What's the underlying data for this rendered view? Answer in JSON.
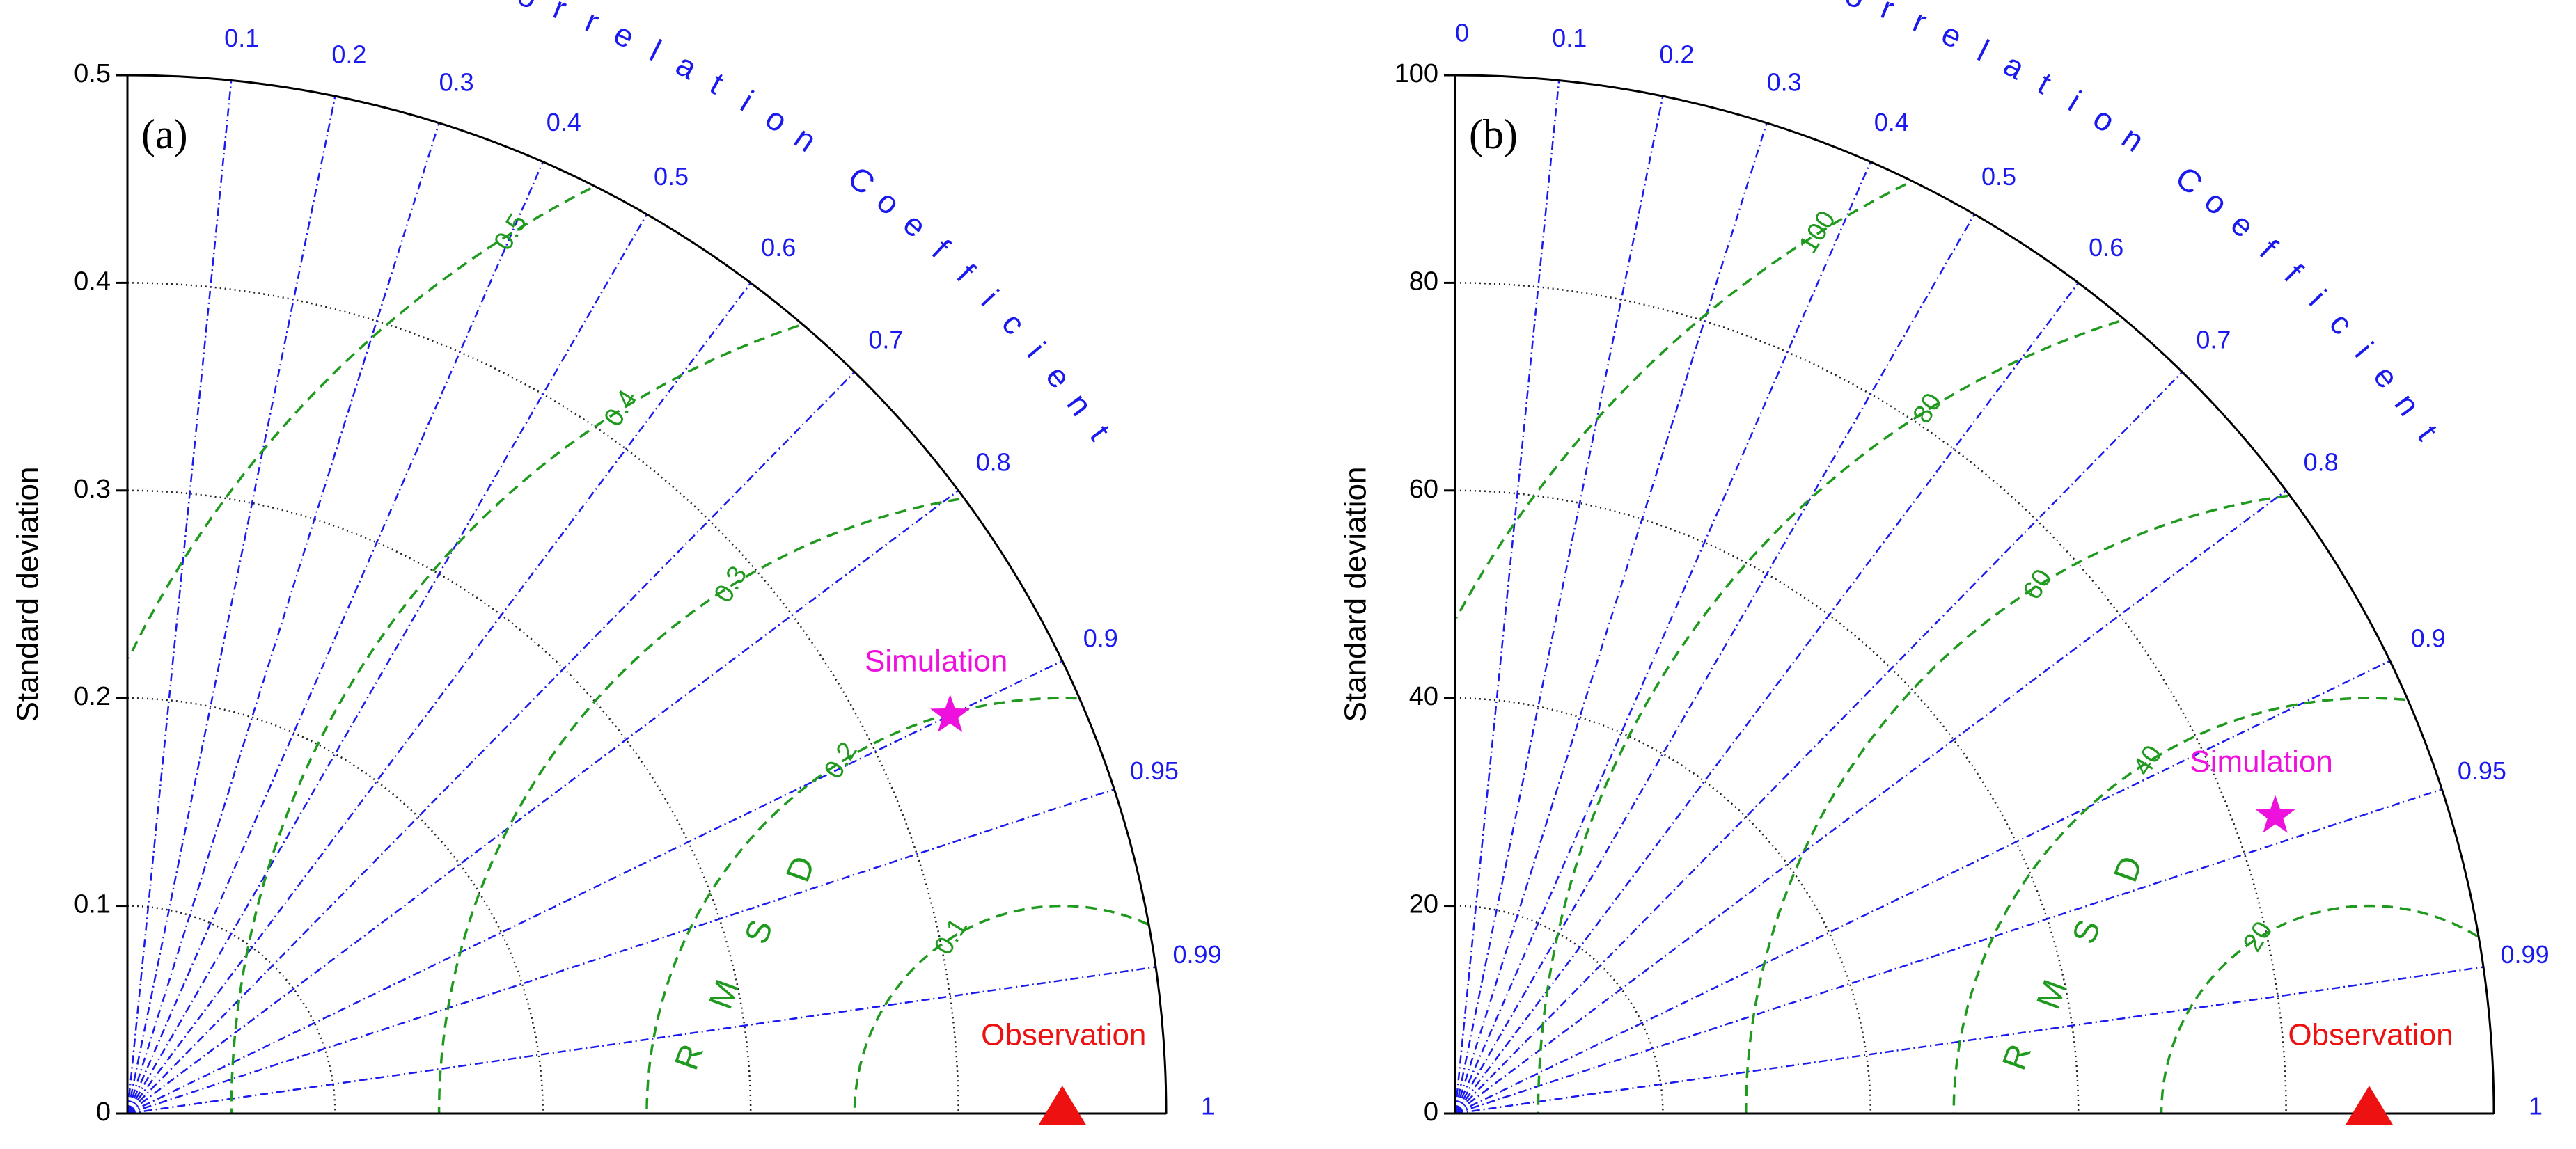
{
  "chart_data": [
    {
      "type": "taylor",
      "panel_label": "(a)",
      "ylabel": "Standard deviation",
      "arc_label": "Correlation Coefficient",
      "rmsd_label": "RMSD",
      "std_max": 0.5,
      "std_ticks": [
        0,
        0.1,
        0.2,
        0.3,
        0.4,
        0.5
      ],
      "std_tick_labels": [
        "0",
        "0.1",
        "0.2",
        "0.3",
        "0.4",
        "0.5"
      ],
      "corr_ticks": [
        0.1,
        0.2,
        0.3,
        0.4,
        0.5,
        0.6,
        0.7,
        0.8,
        0.9,
        0.95,
        0.99,
        1
      ],
      "corr_tick_labels": [
        "0.1",
        "0.2",
        "0.3",
        "0.4",
        "0.5",
        "0.6",
        "0.7",
        "0.8",
        "0.9",
        "0.95",
        "0.99",
        "1"
      ],
      "rmsd_contours": [
        0.1,
        0.2,
        0.3,
        0.4,
        0.5
      ],
      "rmsd_labels": [
        "0.1",
        "0.2",
        "0.3",
        "0.4",
        "0.5"
      ],
      "observation": {
        "label": "Observation",
        "std": 0.45
      },
      "simulation": {
        "label": "Simulation",
        "std": 0.44,
        "corr": 0.9
      }
    },
    {
      "type": "taylor",
      "panel_label": "(b)",
      "ylabel": "Standard deviation",
      "arc_label": "Correlation Coefficient",
      "rmsd_label": "RMSD",
      "std_max": 100,
      "std_ticks": [
        0,
        20,
        40,
        60,
        80,
        100
      ],
      "std_tick_labels": [
        "0",
        "20",
        "40",
        "60",
        "80",
        "100"
      ],
      "corr_ticks": [
        0,
        0.1,
        0.2,
        0.3,
        0.4,
        0.5,
        0.6,
        0.7,
        0.8,
        0.9,
        0.95,
        0.99,
        1
      ],
      "corr_tick_labels": [
        "0",
        "0.1",
        "0.2",
        "0.3",
        "0.4",
        "0.5",
        "0.6",
        "0.7",
        "0.8",
        "0.9",
        "0.95",
        "0.99",
        "1"
      ],
      "rmsd_contours": [
        20,
        40,
        60,
        80,
        100
      ],
      "rmsd_labels": [
        "20",
        "40",
        "60",
        "80",
        "100"
      ],
      "observation": {
        "label": "Observation",
        "std": 88
      },
      "simulation": {
        "label": "Simulation",
        "std": 84,
        "corr": 0.94
      }
    }
  ]
}
